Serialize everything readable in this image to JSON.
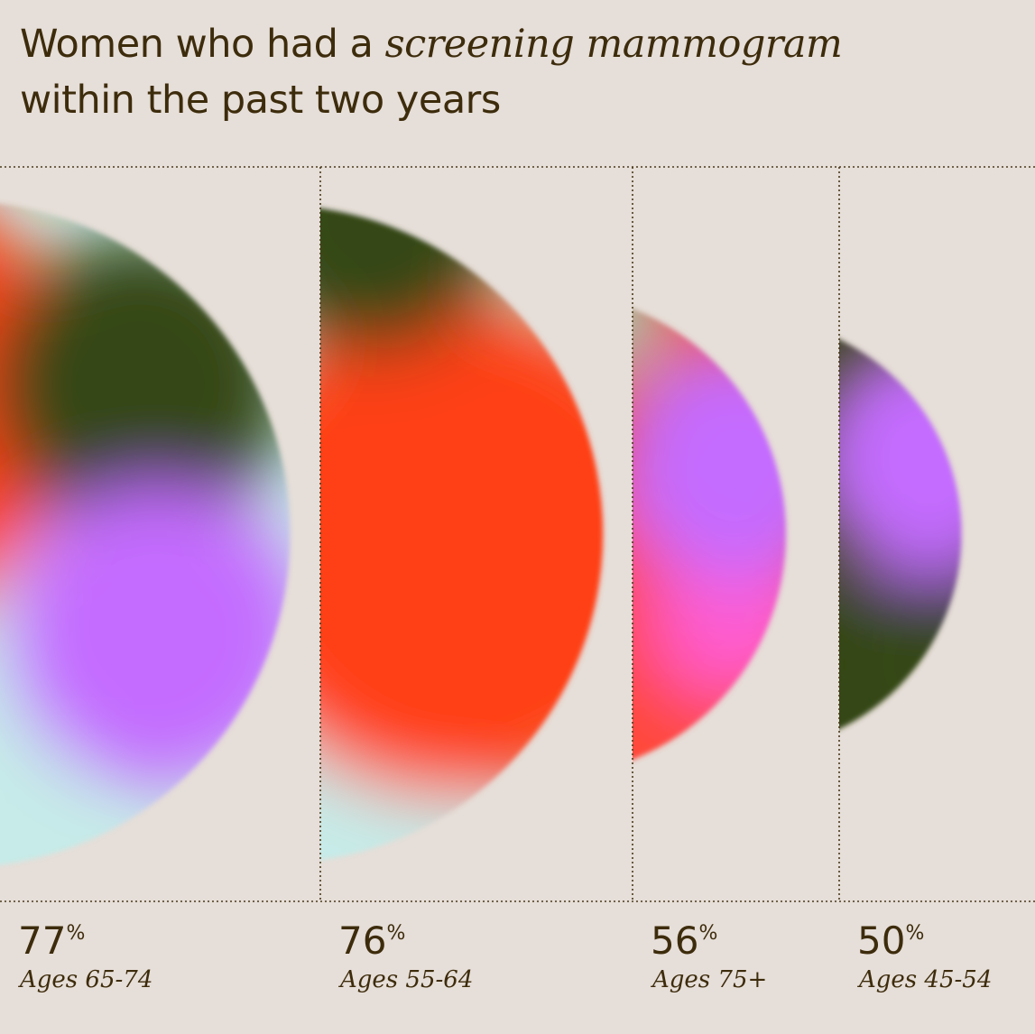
{
  "chart_data": {
    "type": "half-circle",
    "title_parts": [
      "Women who had a",
      "screening mammogram",
      "within the past two years"
    ],
    "categories": [
      "Ages 65-74",
      "Ages 55-64",
      "Ages 75+",
      "Ages 45-54"
    ],
    "values": [
      77,
      76,
      56,
      50
    ],
    "unit": "%"
  }
}
